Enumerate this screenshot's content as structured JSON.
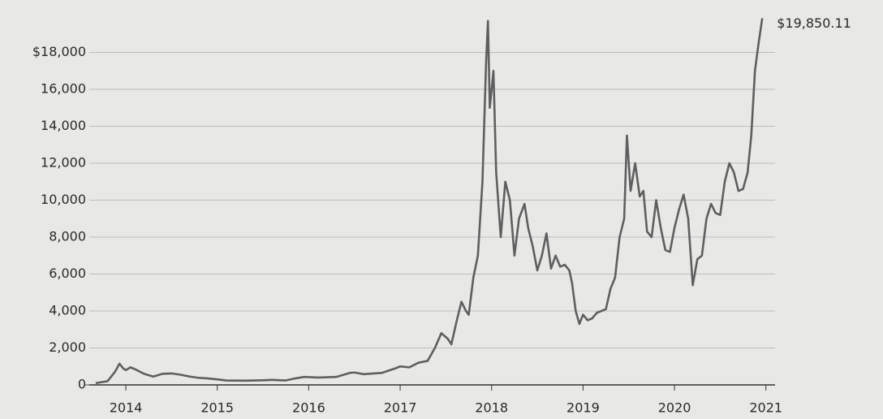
{
  "chart_data": {
    "type": "line",
    "x": [
      2013.67,
      2013.8,
      2013.88,
      2013.93,
      2013.97,
      2014.0,
      2014.05,
      2014.1,
      2014.2,
      2014.3,
      2014.4,
      2014.5,
      2014.6,
      2014.7,
      2014.8,
      2014.9,
      2015.0,
      2015.1,
      2015.3,
      2015.5,
      2015.6,
      2015.75,
      2015.85,
      2015.95,
      2016.1,
      2016.3,
      2016.45,
      2016.5,
      2016.6,
      2016.8,
      2016.95,
      2017.0,
      2017.1,
      2017.2,
      2017.3,
      2017.38,
      2017.45,
      2017.52,
      2017.56,
      2017.62,
      2017.67,
      2017.72,
      2017.75,
      2017.8,
      2017.85,
      2017.9,
      2017.94,
      2017.96,
      2017.98,
      2018.02,
      2018.05,
      2018.1,
      2018.15,
      2018.2,
      2018.25,
      2018.3,
      2018.36,
      2018.4,
      2018.45,
      2018.5,
      2018.55,
      2018.6,
      2018.65,
      2018.7,
      2018.75,
      2018.8,
      2018.85,
      2018.88,
      2018.92,
      2018.96,
      2019.0,
      2019.05,
      2019.1,
      2019.15,
      2019.25,
      2019.3,
      2019.35,
      2019.4,
      2019.45,
      2019.48,
      2019.52,
      2019.57,
      2019.62,
      2019.66,
      2019.7,
      2019.75,
      2019.8,
      2019.85,
      2019.9,
      2019.95,
      2020.0,
      2020.05,
      2020.1,
      2020.15,
      2020.2,
      2020.25,
      2020.3,
      2020.35,
      2020.4,
      2020.45,
      2020.5,
      2020.55,
      2020.6,
      2020.65,
      2020.7,
      2020.75,
      2020.8,
      2020.84,
      2020.88,
      2020.92,
      2020.96
    ],
    "series": [
      {
        "color": "#5f5f5f",
        "values": [
          100,
          200,
          700,
          1150,
          900,
          800,
          950,
          850,
          600,
          450,
          600,
          620,
          550,
          450,
          380,
          350,
          300,
          240,
          230,
          250,
          270,
          240,
          350,
          430,
          400,
          430,
          650,
          670,
          580,
          650,
          900,
          1000,
          950,
          1200,
          1300,
          2000,
          2800,
          2500,
          2200,
          3500,
          4500,
          4000,
          3800,
          5800,
          7000,
          11000,
          17500,
          19700,
          15000,
          17000,
          11500,
          8000,
          11000,
          10000,
          7000,
          9000,
          9800,
          8500,
          7500,
          6200,
          7000,
          8200,
          6300,
          7000,
          6400,
          6500,
          6200,
          5500,
          4000,
          3300,
          3800,
          3500,
          3600,
          3900,
          4100,
          5200,
          5800,
          8000,
          9000,
          13500,
          10500,
          12000,
          10200,
          10500,
          8300,
          8000,
          10000,
          8500,
          7300,
          7200,
          8500,
          9500,
          10300,
          9000,
          5400,
          6800,
          7000,
          9000,
          9800,
          9300,
          9200,
          11000,
          12000,
          11500,
          10500,
          10600,
          11500,
          13500,
          17000,
          18500,
          19850.11
        ]
      }
    ],
    "xlim": [
      2013.6,
      2021.1
    ],
    "xticks": [
      2014,
      2015,
      2016,
      2017,
      2018,
      2019,
      2020,
      2021
    ],
    "ylim": [
      0,
      20000
    ],
    "yticks": [
      0,
      {
        "value": 2000,
        "label": "2,000"
      },
      {
        "value": 4000,
        "label": "4,000"
      },
      {
        "value": 6000,
        "label": "6,000"
      },
      {
        "value": 8000,
        "label": "8,000"
      },
      {
        "value": 10000,
        "label": "10,000"
      },
      {
        "value": 12000,
        "label": "12,000"
      },
      {
        "value": 14000,
        "label": "14,000"
      },
      {
        "value": 16000,
        "label": "16,000"
      },
      {
        "value": 18000,
        "label": "$18,000"
      }
    ],
    "grid": true,
    "annotations": [
      {
        "text": "$19,850.11",
        "x": 2020.96,
        "y": 19850.11
      }
    ]
  }
}
